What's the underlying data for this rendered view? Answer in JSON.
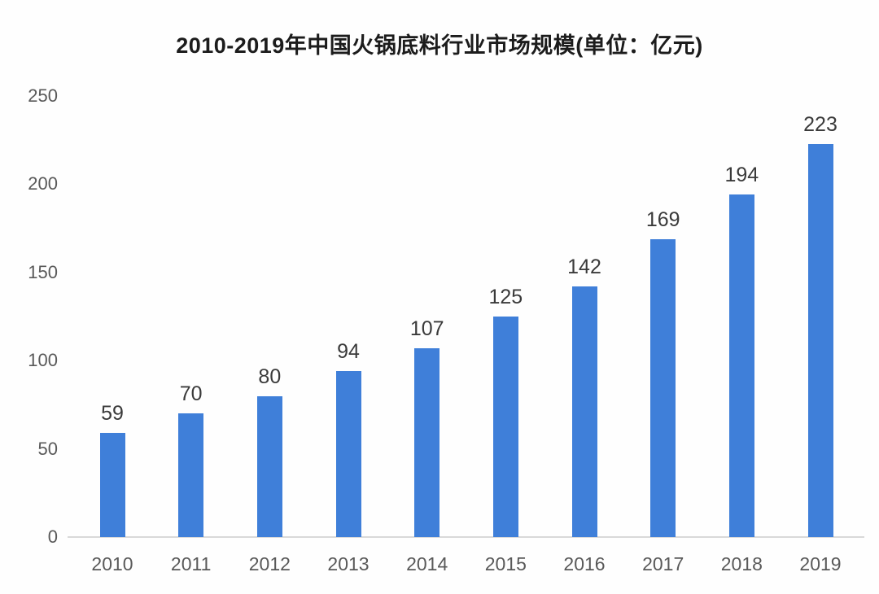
{
  "chart_data": {
    "type": "bar",
    "title": "2010-2019年中国火锅底料行业市场规模(单位：亿元)",
    "categories": [
      "2010",
      "2011",
      "2012",
      "2013",
      "2014",
      "2015",
      "2016",
      "2017",
      "2018",
      "2019"
    ],
    "values": [
      59,
      70,
      80,
      94,
      107,
      125,
      142,
      169,
      194,
      223
    ],
    "xlabel": "",
    "ylabel": "",
    "ylim": [
      0,
      250
    ],
    "yticks": [
      0,
      50,
      100,
      150,
      200,
      250
    ],
    "grid": false,
    "legend_position": "none",
    "value_labels_shown": true,
    "colors": {
      "bar": "#3F7FD9",
      "title_text": "#1c1c1c",
      "value_label_text": "#3a3a3a",
      "axis_tick_text": "#595959",
      "axis_line": "#d9d9d9",
      "background": "#fefefe"
    }
  }
}
